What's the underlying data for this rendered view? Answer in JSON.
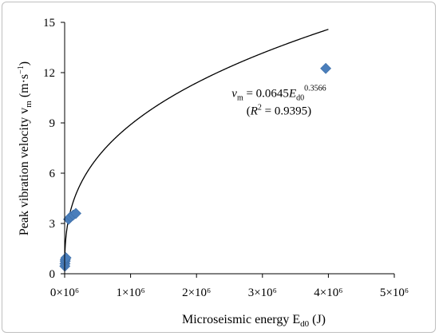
{
  "chart_data": {
    "type": "scatter",
    "title": "",
    "xlabel": "Microseismic energy  E",
    "xlabel_sub": "d0",
    "xlabel_unit": " (J)",
    "ylabel": "Peak vibration velocity v",
    "ylabel_sub": "m",
    "ylabel_unit": " (m·s",
    "ylabel_unit_sup": "−1",
    "ylabel_unit_close": ")",
    "xlim": [
      0,
      5000000
    ],
    "ylim": [
      0,
      15
    ],
    "x_ticks": [
      {
        "value": 0,
        "label": "0×10⁶"
      },
      {
        "value": 1000000,
        "label": "1×10⁶"
      },
      {
        "value": 2000000,
        "label": "2×10⁶"
      },
      {
        "value": 3000000,
        "label": "3×10⁶"
      },
      {
        "value": 4000000,
        "label": "4×10⁶"
      },
      {
        "value": 5000000,
        "label": "5×10⁶"
      }
    ],
    "y_ticks": [
      {
        "value": 0,
        "label": "0"
      },
      {
        "value": 3,
        "label": "3"
      },
      {
        "value": 6,
        "label": "6"
      },
      {
        "value": 9,
        "label": "9"
      },
      {
        "value": 12,
        "label": "12"
      },
      {
        "value": 15,
        "label": "15"
      }
    ],
    "marker_color": "#4a7ebb",
    "points": [
      {
        "x": 3000,
        "y": 0.45
      },
      {
        "x": 5000,
        "y": 0.6
      },
      {
        "x": 8000,
        "y": 0.75
      },
      {
        "x": 10000,
        "y": 0.85
      },
      {
        "x": 20000,
        "y": 0.95
      },
      {
        "x": 60000,
        "y": 3.25
      },
      {
        "x": 90000,
        "y": 3.4
      },
      {
        "x": 130000,
        "y": 3.5
      },
      {
        "x": 170000,
        "y": 3.6
      },
      {
        "x": 3960000,
        "y": 12.25
      }
    ],
    "fit": {
      "type": "power",
      "a": 0.0645,
      "b": 0.3566,
      "x_range": [
        500,
        4000000
      ],
      "color": "#000000"
    },
    "annotation": {
      "var": "v",
      "var_sub": "m",
      "eq_mid": " = 0.0645",
      "eq_var": "E",
      "eq_sub": "d0",
      "eq_sup": "0.3566",
      "r2_open": "(",
      "r2_var": "R",
      "r2_sup": "2",
      "r2_rest": " = 0.9395)",
      "x": 3250000,
      "y": 9.6
    },
    "grid": false,
    "legend": "none"
  }
}
